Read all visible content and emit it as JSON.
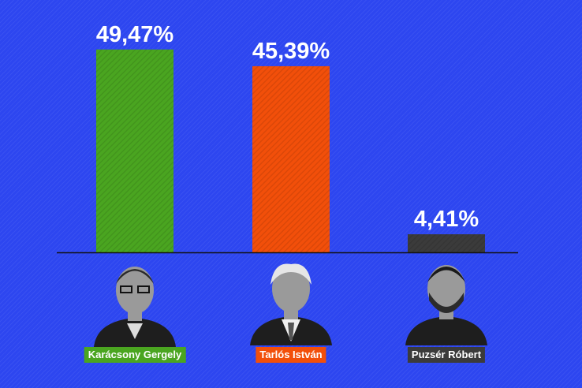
{
  "chart_data": {
    "type": "bar",
    "categories": [
      "Karácsony Gergely",
      "Tarlós István",
      "Puzsér Róbert"
    ],
    "values": [
      49.47,
      45.39,
      4.41
    ],
    "value_labels": [
      "49,47%",
      "45,39%",
      "4,41%"
    ],
    "colors": [
      "#4aa520",
      "#f24f0a",
      "#3b3b3b"
    ],
    "ylim": [
      0,
      50
    ],
    "grid": false,
    "legend": "none"
  },
  "colors": {
    "background": "#2d46f0",
    "baseline": "#111111",
    "portrait_dark": "#1e1e1e",
    "portrait_skin": "#9a9a9a"
  },
  "candidates": [
    {
      "name": "Karácsony Gergely",
      "tag_color": "#4aa520",
      "photo": "man-glasses-portrait"
    },
    {
      "name": "Tarlós István",
      "tag_color": "#f24f0a",
      "photo": "white-haired-man-portrait"
    },
    {
      "name": "Puzsér Róbert",
      "tag_color": "#3b3b3b",
      "photo": "bearded-man-portrait"
    }
  ]
}
